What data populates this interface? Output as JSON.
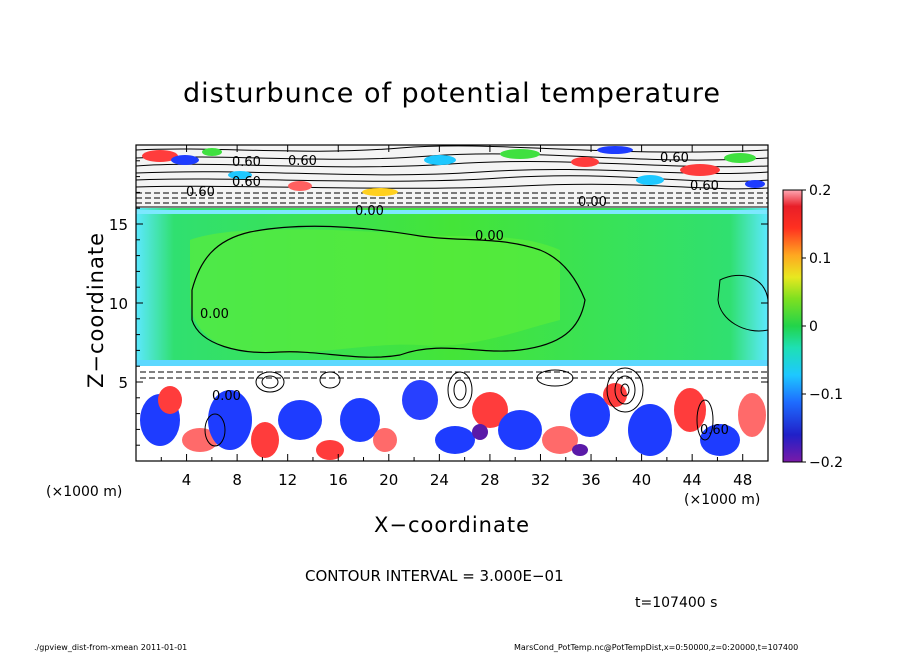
{
  "chart_data": {
    "type": "heatmap",
    "title": "disturbunce of potential temperature",
    "xlabel": "X−coordinate",
    "ylabel": "Z−coordinate",
    "x_unit_left": "(×1000 m)",
    "x_unit_right": "(×1000 m)",
    "xlim": [
      0,
      50
    ],
    "ylim": [
      0,
      20
    ],
    "x_ticks": [
      "4",
      "8",
      "12",
      "16",
      "20",
      "24",
      "28",
      "32",
      "36",
      "40",
      "44",
      "48"
    ],
    "y_ticks": [
      "5",
      "10",
      "15"
    ],
    "colorbar": {
      "ticks": [
        "0.2",
        "0.1",
        "0",
        "−0.1",
        "−0.2"
      ],
      "range": [
        -0.2,
        0.2
      ]
    },
    "contour_labels": [
      "0.60",
      "0.60",
      "0.60",
      "0.60",
      "0.60",
      "0.60",
      "0.00",
      "0.00",
      "0.00",
      "0.00",
      "0.00",
      "0.60"
    ],
    "contour_interval": "CONTOUR INTERVAL = 3.000E−01",
    "time": "t=107400 s"
  },
  "footer": {
    "left": "./gpview_dist-from-xmean   2011-01-01",
    "right": "MarsCond_PotTemp.nc@PotTempDist,x=0:50000,z=0:20000,t=107400"
  },
  "colors": {
    "green_interior": "#3ce43c",
    "upper_band": "#f2f2f2",
    "lower_band_white": "#ffffff",
    "blue_eddy": "#1e3cff",
    "red_eddy": "#ff3c3c"
  }
}
